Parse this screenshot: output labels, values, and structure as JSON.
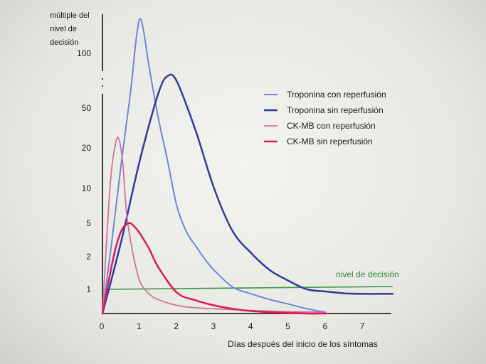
{
  "chart_data": {
    "type": "line",
    "ylabel_lines": [
      "múltiple del",
      "nivel de",
      "decisión"
    ],
    "xlabel": "Días después del inicio de los síntomas",
    "x_ticks": [
      "0",
      "1",
      "2",
      "3",
      "4",
      "5",
      "6",
      "7"
    ],
    "y_ticks": [
      "1",
      "2",
      "5",
      "10",
      "20",
      "50",
      "100"
    ],
    "xlim": [
      0,
      7.8
    ],
    "threshold": {
      "label": "nivel de decisión",
      "value": 1,
      "color": "#3a9a45"
    },
    "series": [
      {
        "name": "Troponina con reperfusión",
        "color": "#6f86e0",
        "width": 2,
        "x": [
          0,
          0.25,
          0.5,
          0.75,
          0.9,
          1.0,
          1.1,
          1.25,
          1.5,
          1.75,
          2.0,
          2.25,
          2.5,
          2.75,
          3.0,
          3.5,
          4.0,
          4.5,
          5.0,
          5.5,
          6.0
        ],
        "y": [
          0.3,
          3.0,
          15,
          60,
          110,
          130,
          120,
          85,
          40,
          16,
          7,
          4,
          2.7,
          1.9,
          1.5,
          1.05,
          0.8,
          0.6,
          0.48,
          0.38,
          0.32
        ]
      },
      {
        "name": "Troponina sin reperfusión",
        "color": "#2e3d9e",
        "width": 2.5,
        "x": [
          0,
          0.5,
          1.0,
          1.5,
          1.75,
          2.0,
          2.5,
          3.0,
          3.5,
          4.0,
          4.5,
          5.0,
          5.5,
          6.0,
          6.5,
          7.0,
          7.5,
          7.8
        ],
        "y": [
          0.3,
          3,
          16,
          60,
          75,
          70,
          30,
          10,
          4,
          2.2,
          1.5,
          1.2,
          1.0,
          0.9,
          0.82,
          0.8,
          0.8,
          0.8
        ]
      },
      {
        "name": "CK-MB con reperfusión",
        "color": "#d86f9c",
        "width": 1.8,
        "x": [
          0,
          0.2,
          0.35,
          0.45,
          0.55,
          0.65,
          0.8,
          1.0,
          1.25,
          1.5,
          2.0,
          2.5,
          3.0,
          4.0,
          5.0,
          6.0
        ],
        "y": [
          0.3,
          10,
          22,
          24,
          15,
          6,
          2.4,
          1.2,
          0.8,
          0.6,
          0.45,
          0.4,
          0.38,
          0.35,
          0.33,
          0.32
        ]
      },
      {
        "name": "CK-MB sin reperfusión",
        "color": "#e0185a",
        "width": 2.5,
        "x": [
          0,
          0.3,
          0.5,
          0.7,
          0.85,
          1.0,
          1.25,
          1.5,
          2.0,
          2.5,
          3.0,
          3.5,
          4.0,
          4.5,
          5.0,
          5.5,
          6.0
        ],
        "y": [
          0.3,
          2.0,
          4.0,
          5.0,
          4.6,
          3.8,
          2.5,
          1.6,
          0.85,
          0.58,
          0.45,
          0.38,
          0.34,
          0.32,
          0.31,
          0.3,
          0.3
        ]
      }
    ]
  }
}
